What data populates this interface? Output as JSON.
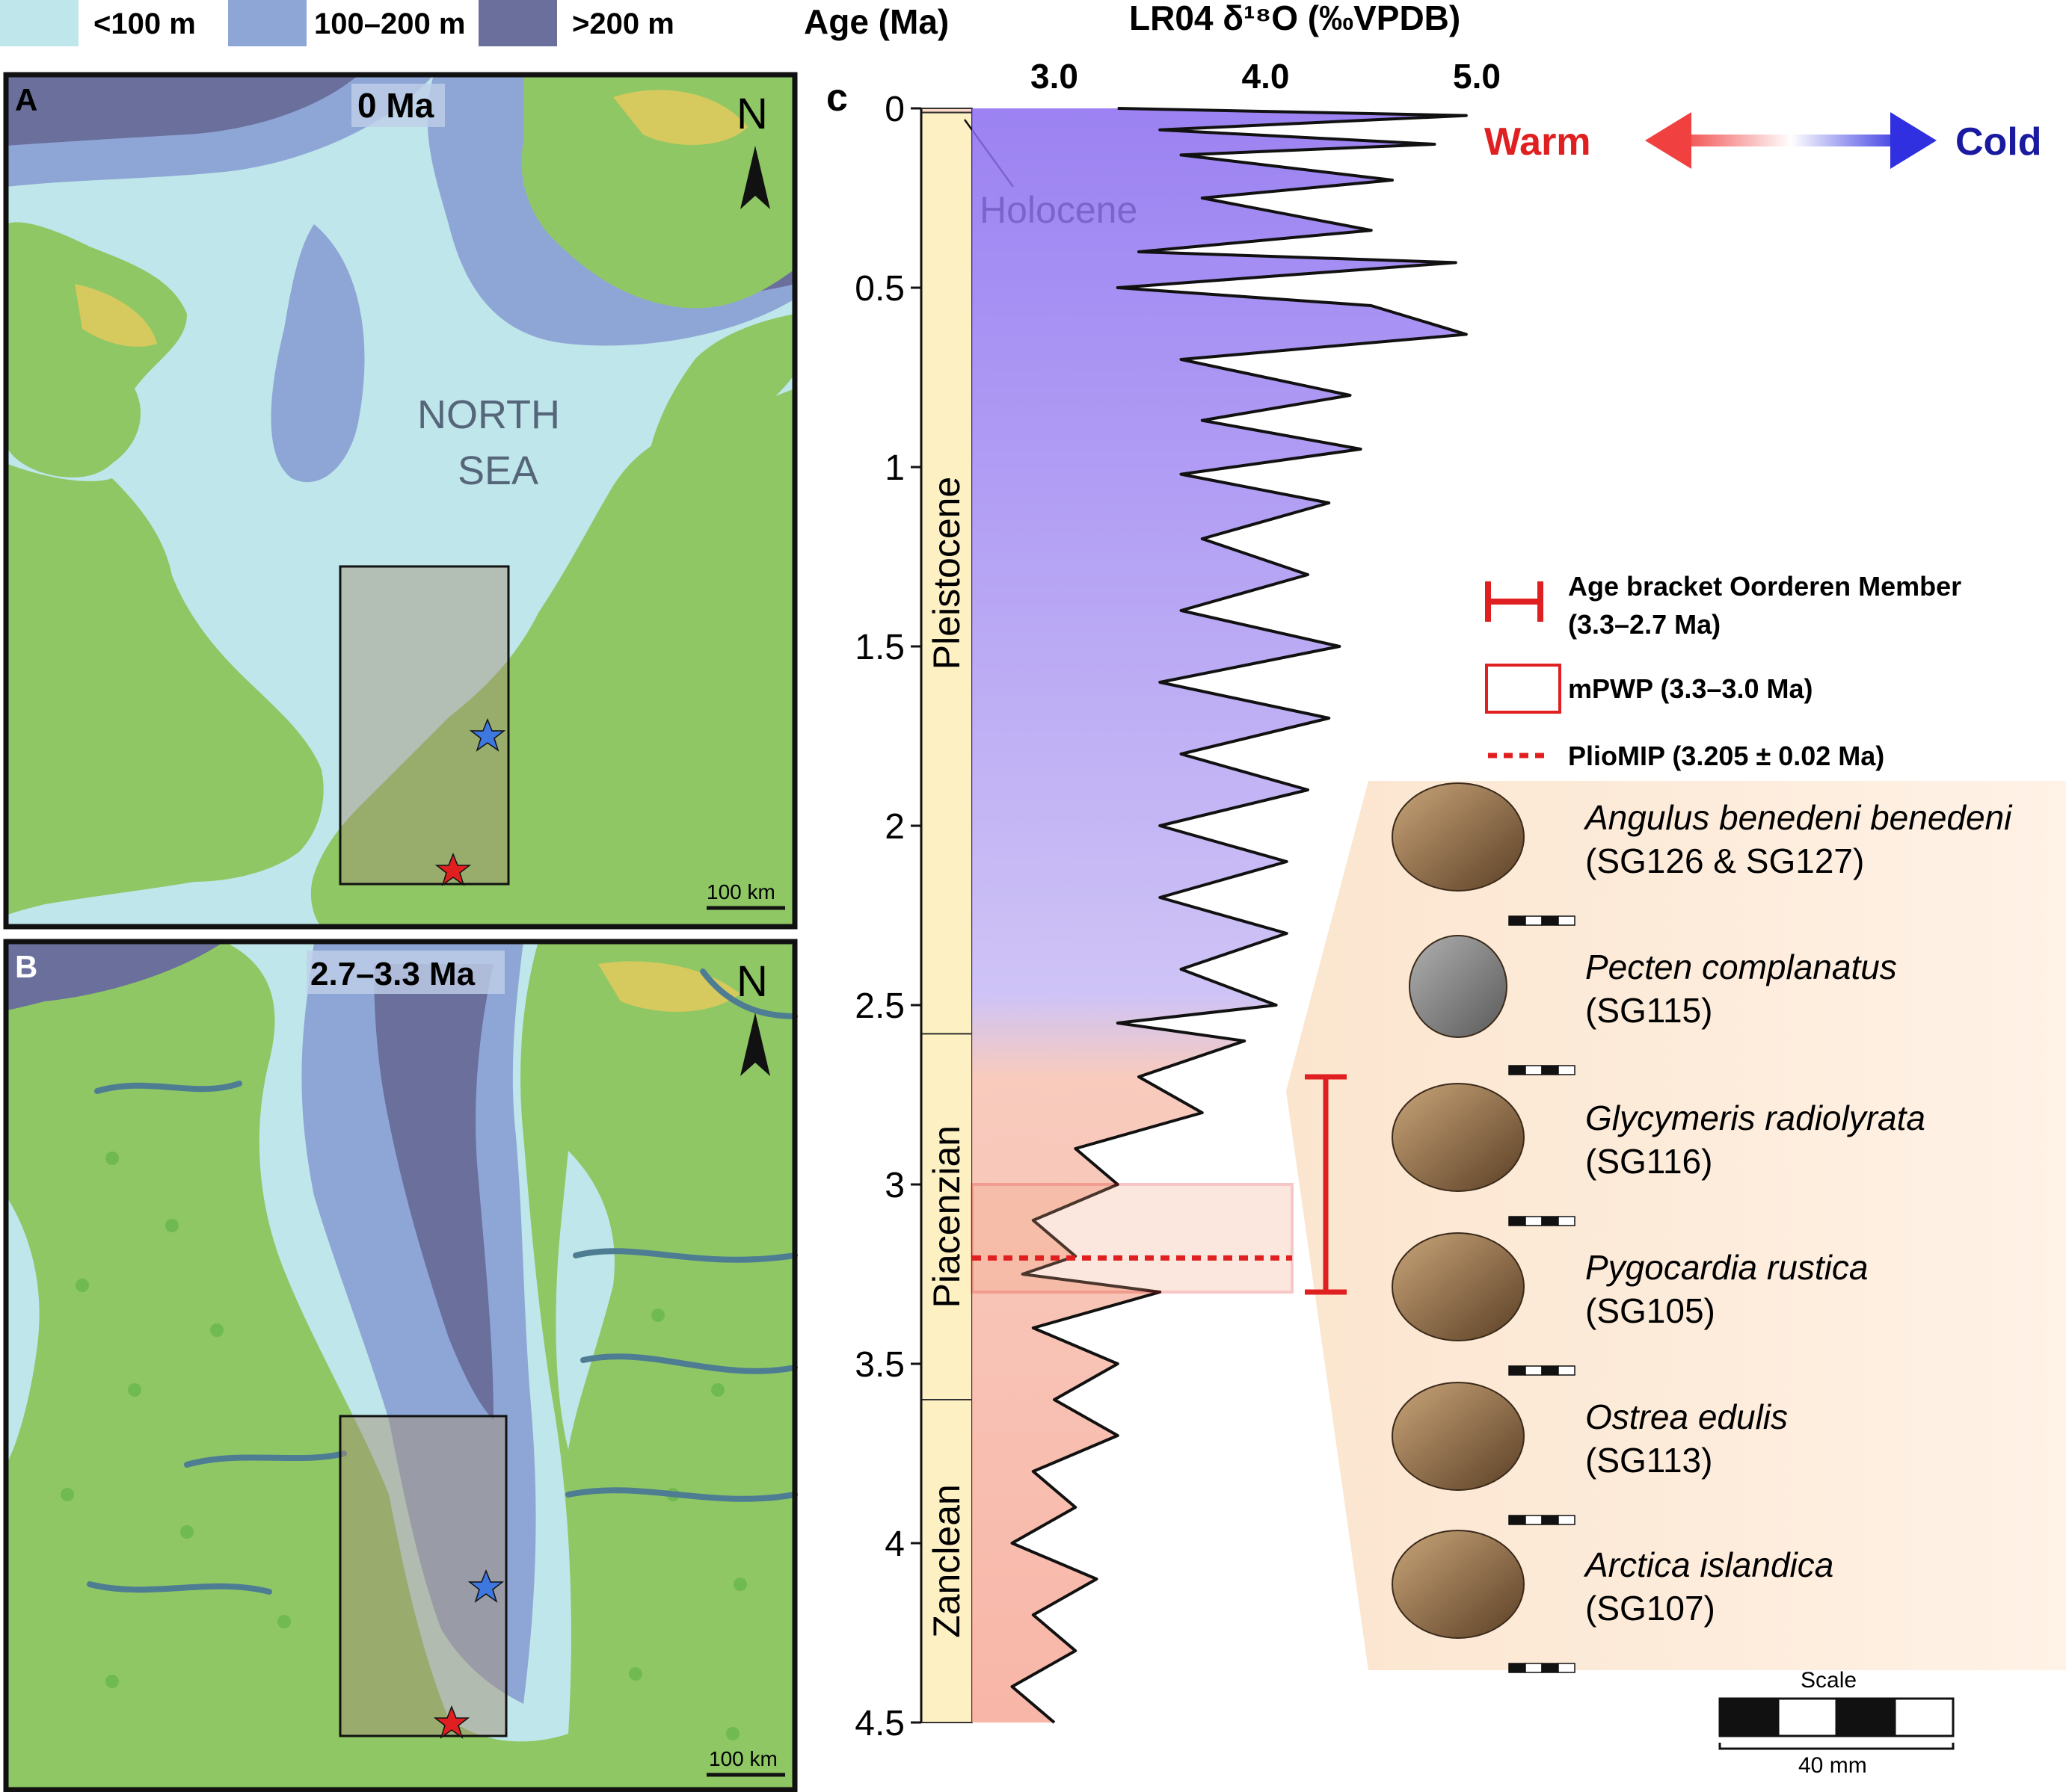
{
  "legend_top": {
    "items": [
      {
        "label": "<100 m",
        "color": "#bfe6ea"
      },
      {
        "label": "100–200 m",
        "color": "#8ea6d6"
      },
      {
        "label": ">200 m",
        "color": "#6a6f9c"
      }
    ]
  },
  "panel_a": {
    "letter": "A",
    "age_label": "0 Ma",
    "sea_label_line1": "NORTH",
    "sea_label_line2": "SEA",
    "north_label": "N",
    "scale_label": "100 km"
  },
  "panel_b": {
    "letter": "B",
    "age_label": "2.7–3.3 Ma",
    "north_label": "N",
    "scale_label": "100 km"
  },
  "panel_c": {
    "letter": "c",
    "age_axis_title": "Age (Ma)",
    "x_axis_title": "LR04 δ¹⁸O (‰VPDB)",
    "warm_label": "Warm",
    "cold_label": "Cold",
    "epochs": [
      {
        "name": "Holocene",
        "start": 0.0,
        "end": 0.0117
      },
      {
        "name": "Pleistocene",
        "start": 0.0117,
        "end": 2.58
      },
      {
        "name": "Piacenzian",
        "start": 2.58,
        "end": 3.6
      },
      {
        "name": "Zanclean",
        "start": 3.6,
        "end": 4.5
      }
    ],
    "legend": {
      "bracket_label_line1": "Age bracket Oorderen Member",
      "bracket_label_line2": "(3.3–2.7 Ma)",
      "mpwp_label": "mPWP (3.3–3.0 Ma)",
      "pliomip_label": "PlioMIP (3.205 ± 0.02 Ma)"
    },
    "specimens": [
      {
        "name": "Angulus benedeni benedeni",
        "code": "(SG126 & SG127)"
      },
      {
        "name": "Pecten complanatus",
        "code": "(SG115)"
      },
      {
        "name": "Glycymeris radiolyrata",
        "code": "(SG116)"
      },
      {
        "name": "Pygocardia rustica",
        "code": "(SG105)"
      },
      {
        "name": "Ostrea edulis",
        "code": "(SG113)"
      },
      {
        "name": "Arctica islandica",
        "code": "(SG107)"
      }
    ],
    "scale_title": "Scale",
    "scale_value": "40 mm"
  },
  "chart_data": {
    "type": "line",
    "title": "LR04 δ¹⁸O (‰VPDB)",
    "xlabel": "LR04 δ¹⁸O (‰VPDB)",
    "ylabel": "Age (Ma)",
    "xlim": [
      2.6,
      5.0
    ],
    "ylim": [
      0,
      4.5
    ],
    "x_ticks": [
      "3.0",
      "4.0",
      "5.0"
    ],
    "y_ticks": [
      "0",
      "0.5",
      "1",
      "1.5",
      "2",
      "2.5",
      "3",
      "3.5",
      "4",
      "4.5"
    ],
    "series": [
      {
        "name": "LR04",
        "age": [
          0.0,
          0.02,
          0.06,
          0.1,
          0.13,
          0.2,
          0.25,
          0.34,
          0.4,
          0.43,
          0.5,
          0.55,
          0.63,
          0.7,
          0.8,
          0.87,
          0.95,
          1.02,
          1.1,
          1.2,
          1.3,
          1.4,
          1.5,
          1.6,
          1.7,
          1.8,
          1.9,
          2.0,
          2.1,
          2.2,
          2.3,
          2.4,
          2.5,
          2.55,
          2.6,
          2.7,
          2.8,
          2.9,
          3.0,
          3.1,
          3.2,
          3.25,
          3.3,
          3.4,
          3.5,
          3.6,
          3.7,
          3.8,
          3.9,
          4.0,
          4.1,
          4.2,
          4.3,
          4.4,
          4.5
        ],
        "d18O": [
          3.3,
          4.95,
          3.5,
          4.8,
          3.6,
          4.6,
          3.7,
          4.5,
          3.4,
          4.9,
          3.3,
          4.5,
          4.95,
          3.6,
          4.4,
          3.7,
          4.45,
          3.6,
          4.3,
          3.7,
          4.2,
          3.6,
          4.35,
          3.5,
          4.3,
          3.6,
          4.2,
          3.5,
          4.1,
          3.5,
          4.1,
          3.6,
          4.05,
          3.3,
          3.9,
          3.4,
          3.7,
          3.1,
          3.3,
          2.9,
          3.1,
          2.85,
          3.5,
          2.9,
          3.3,
          3.0,
          3.3,
          2.9,
          3.1,
          2.8,
          3.2,
          2.9,
          3.1,
          2.8,
          3.0
        ]
      }
    ],
    "annotations": {
      "age_bracket_oorderen": [
        2.7,
        3.3
      ],
      "mpwp": [
        3.0,
        3.3
      ],
      "pliomip": 3.205
    }
  }
}
